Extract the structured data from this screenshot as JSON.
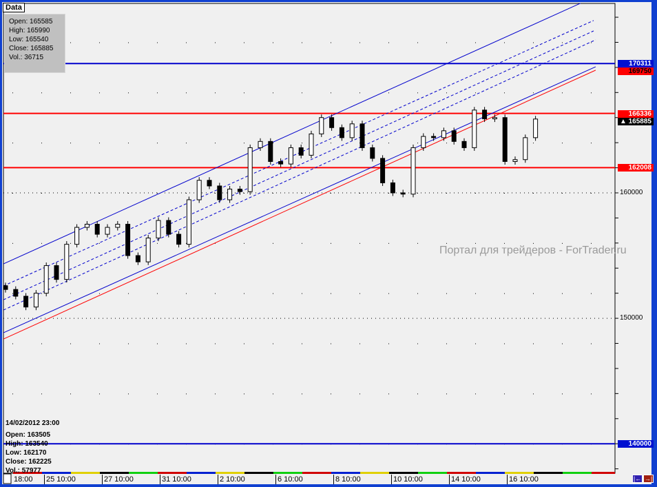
{
  "data_tab": "Data",
  "tooltip": {
    "open": "Open: 165585",
    "high": "High: 165990",
    "low": "Low: 165540",
    "close": "Close: 165885",
    "vol": "Vol.: 36715"
  },
  "bar_info": {
    "datetime": "14/02/2012 23:00",
    "open": "Open: 163505",
    "high": "High: 163540",
    "low": "Low: 162170",
    "close": "Close: 162225",
    "vol": "Vol.: 57977"
  },
  "watermark": "Портал для трейдеров - ForTrader.ru",
  "nav": {
    "left_icon": "scroll-left-icon",
    "right_icon": "scroll-right-icon"
  },
  "colors": {
    "up_line": "#0000cc",
    "support": "#ff0000",
    "current": "#000000",
    "background": "#f0f0f0"
  },
  "chart_data": {
    "type": "candlestick",
    "ylim": [
      137650,
      175100
    ],
    "y_tick_labels": [
      "160000",
      "150000"
    ],
    "x_tick_labels": [
      "18:00",
      "25 10:00",
      "27 10:00",
      "31 10:00",
      "2 10:00",
      "6 10:00",
      "8 10:00",
      "10 10:00",
      "14 10:00",
      "16 10:00"
    ],
    "grid": true,
    "close": [
      152300,
      151760,
      150900,
      152000,
      154200,
      153100,
      155900,
      157250,
      157500,
      156700,
      157250,
      157500,
      155000,
      154500,
      156400,
      157800,
      156700,
      155900,
      159450,
      161000,
      160550,
      159450,
      160300,
      160100,
      163600,
      164100,
      162500,
      162300,
      163600,
      163000,
      164700,
      166000,
      165200,
      164400,
      165500,
      163600,
      162750,
      160800,
      160000,
      159900,
      163600,
      164500,
      164400,
      164950,
      164100,
      163600,
      166600,
      165900,
      166000,
      162500,
      162650,
      164400,
      165885
    ],
    "horizontal_levels": [
      {
        "price": 170311,
        "color": "#0000cc",
        "label": "170311"
      },
      {
        "price": 166336,
        "color": "#ff0000",
        "label": "166336"
      },
      {
        "price": 162008,
        "color": "#ff0000",
        "label": "162008"
      },
      {
        "price": 140000,
        "color": "#0000cc",
        "label": "140000"
      }
    ],
    "extra_price_tags": [
      {
        "label": "169750",
        "color": "#ff0000"
      },
      {
        "label": "165885",
        "color": "#000000",
        "icon": "▲"
      }
    ],
    "trendlines": [
      {
        "from": [
          -0.2,
          154340
        ],
        "to": [
          56.4,
          175110
        ],
        "color": "#0000cc",
        "style": "solid"
      },
      {
        "from": [
          -0.2,
          148850
        ],
        "to": [
          57.9,
          170050
        ],
        "color": "#0000cc",
        "style": "solid"
      },
      {
        "from": [
          -0.2,
          148350
        ],
        "to": [
          57.9,
          169780
        ],
        "color": "#ff0000",
        "style": "solid"
      },
      {
        "from": [
          -0.2,
          152580
        ],
        "to": [
          57.7,
          173740
        ],
        "color": "#0000cc",
        "style": "dashed"
      },
      {
        "from": [
          -0.2,
          151480
        ],
        "to": [
          57.7,
          172910
        ],
        "color": "#0000cc",
        "style": "dashed"
      },
      {
        "from": [
          -0.2,
          150660
        ],
        "to": [
          57.9,
          172200
        ],
        "color": "#0000cc",
        "style": "dashed"
      }
    ]
  }
}
